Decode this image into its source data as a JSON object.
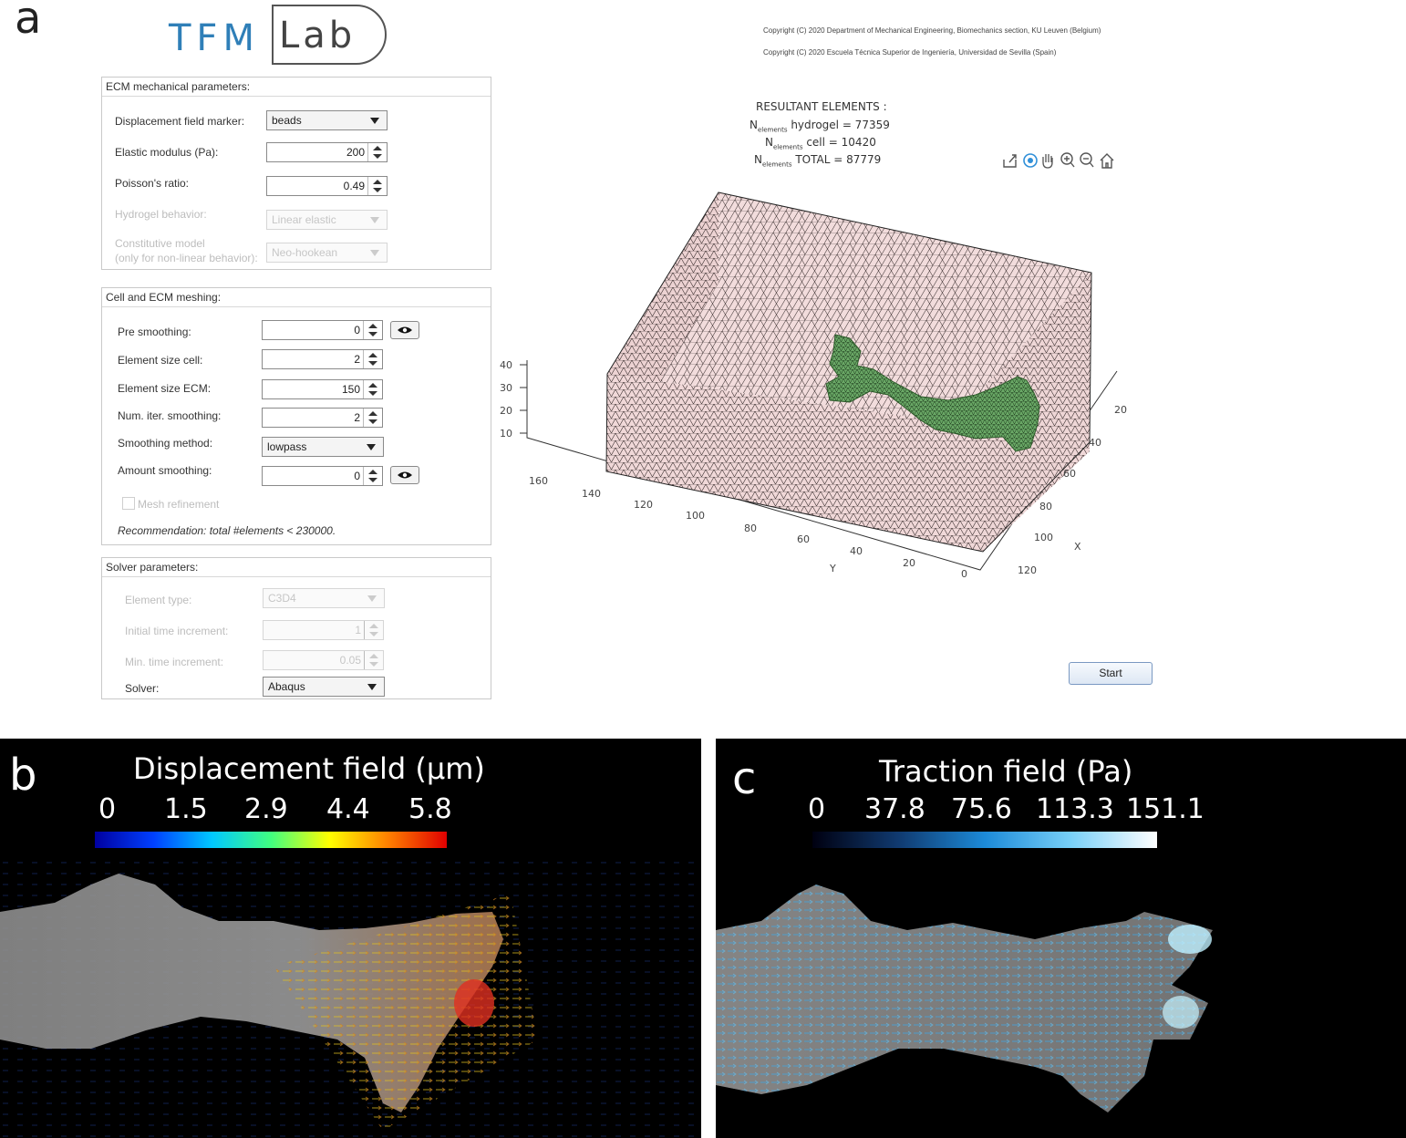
{
  "panel_letters": {
    "a": "a",
    "b": "b",
    "c": "c"
  },
  "logo": {
    "part1": "TFM",
    "part2": "Lab"
  },
  "copyright": [
    "Copyright (C) 2020 Department of Mechanical Engineering, Biomechanics section, KU Leuven (Belgium)",
    "Copyright (C) 2020 Escuela Técnica Superior de Ingeniería, Universidad de Sevilla (Spain)"
  ],
  "ecm": {
    "title": "ECM mechanical parameters:",
    "displacement_marker": {
      "label": "Displacement field marker:",
      "value": "beads"
    },
    "elastic_modulus": {
      "label": "Elastic modulus (Pa):",
      "value": "200"
    },
    "poisson": {
      "label": "Poisson's ratio:",
      "value": "0.49"
    },
    "hydrogel": {
      "label": "Hydrogel behavior:",
      "value": "Linear elastic"
    },
    "constitutive": {
      "label1": "Constitutive model",
      "label2": "(only for non-linear behavior):",
      "value": "Neo-hookean"
    }
  },
  "meshing": {
    "title": "Cell and ECM meshing:",
    "pre_smoothing": {
      "label": "Pre smoothing:",
      "value": "0"
    },
    "element_size_cell": {
      "label": "Element size cell:",
      "value": "2"
    },
    "element_size_ecm": {
      "label": "Element size ECM:",
      "value": "150"
    },
    "num_iter": {
      "label": "Num. iter. smoothing:",
      "value": "2"
    },
    "smoothing_method": {
      "label": "Smoothing method:",
      "value": "lowpass"
    },
    "amount_smoothing": {
      "label": "Amount smoothing:",
      "value": "0"
    },
    "mesh_refinement": "Mesh refinement",
    "recommendation": "Recommendation: total #elements < 230000."
  },
  "solver": {
    "title": "Solver parameters:",
    "element_type": {
      "label": "Element type:",
      "value": "C3D4"
    },
    "initial_time": {
      "label": "Initial time increment:",
      "value": "1"
    },
    "min_time": {
      "label": "Min. time increment:",
      "value": "0.05"
    },
    "solver": {
      "label": "Solver:",
      "value": "Abaqus"
    }
  },
  "stats": {
    "title": "RESULTANT  ELEMENTS :",
    "n": "N",
    "sub": "elements",
    "hydrogel": "hydrogel  =  77359",
    "cell": "cell  =  10420",
    "total": "TOTAL  =  87779"
  },
  "plot": {
    "z_ticks": [
      "40",
      "30",
      "20",
      "10"
    ],
    "y_ticks": [
      "160",
      "140",
      "120",
      "100",
      "80",
      "60",
      "40",
      "20",
      "0"
    ],
    "x_ticks": [
      "20",
      "40",
      "60",
      "80",
      "100",
      "120"
    ],
    "x_label": "X",
    "y_label": "Y",
    "mesh_color": "#f2dcdc",
    "cell_color": "#5e9e5a"
  },
  "toolbar_icons": [
    "export-icon",
    "rotate-icon",
    "pan-icon",
    "zoom-in-icon",
    "zoom-out-icon",
    "home-icon"
  ],
  "start_label": "Start",
  "disp": {
    "title": "Displacement field (µm)",
    "ticks": [
      "0",
      "1.5",
      "2.9",
      "4.4",
      "5.8"
    ]
  },
  "traction": {
    "title": "Traction field (Pa)",
    "ticks": [
      "0",
      "37.8",
      "75.6",
      "113.3",
      "151.1"
    ]
  }
}
